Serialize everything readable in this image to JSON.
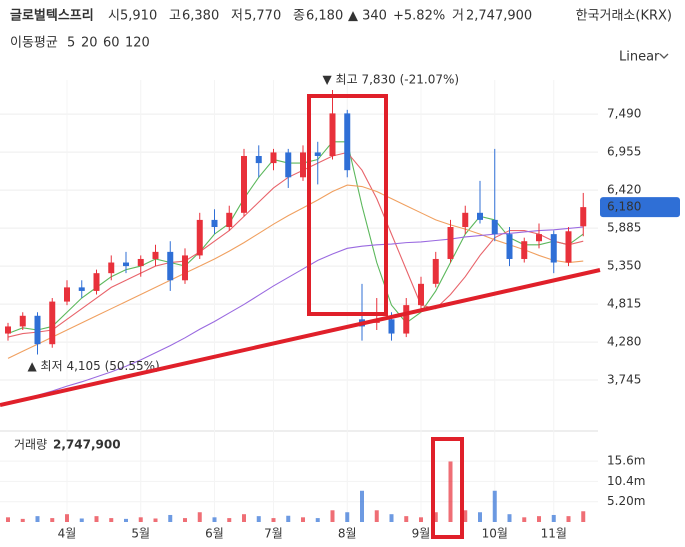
{
  "header": {
    "name": "글로벌텍스프리",
    "open_label": "시",
    "open": "5,910",
    "high_label": "고",
    "high": "6,380",
    "low_label": "저",
    "low": "5,770",
    "close_label": "종",
    "close": "6,180",
    "change": "▲ 340",
    "change_pct": "+5.82%",
    "volume_label": "거",
    "volume": "2,747,900",
    "exchange": "한국거래소(KRX)",
    "ma_label": "이동평균",
    "scale_mode": "Linear"
  },
  "chart_data": {
    "type": "candlestick",
    "categories": [
      null,
      null,
      null,
      null,
      "4월",
      null,
      null,
      null,
      null,
      "5월",
      null,
      null,
      null,
      null,
      "6월",
      null,
      null,
      null,
      "7월",
      null,
      null,
      null,
      null,
      "8월",
      null,
      null,
      null,
      null,
      "9월",
      null,
      null,
      null,
      null,
      "10월",
      null,
      null,
      null,
      "11월",
      null,
      null
    ],
    "open": [
      4400,
      4500,
      4650,
      4250,
      4850,
      5050,
      5000,
      5250,
      5400,
      5350,
      5450,
      5550,
      5150,
      5500,
      6000,
      5900,
      6100,
      6900,
      6800,
      6950,
      6600,
      6950,
      6900,
      7500,
      4600,
      4550,
      4600,
      4400,
      4800,
      5100,
      5450,
      5900,
      6100,
      6000,
      5800,
      5450,
      5700,
      5800,
      5400,
      5910
    ],
    "high": [
      4550,
      4700,
      4700,
      4900,
      5150,
      5150,
      5300,
      5500,
      5550,
      5500,
      5650,
      5700,
      5600,
      6100,
      6150,
      6200,
      7000,
      7050,
      7000,
      7000,
      7050,
      7100,
      7830,
      7550,
      5100,
      4900,
      4700,
      4900,
      5200,
      5550,
      6000,
      6200,
      6550,
      7000,
      5900,
      5750,
      5950,
      5850,
      5900,
      6380
    ],
    "low": [
      4300,
      4450,
      4105,
      4200,
      4800,
      4900,
      4950,
      5150,
      5250,
      5200,
      5350,
      5000,
      5100,
      5450,
      5800,
      5850,
      6050,
      6600,
      6700,
      6450,
      6550,
      6500,
      6850,
      6600,
      4300,
      4450,
      4300,
      4350,
      4750,
      5050,
      5400,
      5800,
      5950,
      5700,
      5350,
      5400,
      5600,
      5250,
      5350,
      5770
    ],
    "close": [
      4500,
      4650,
      4250,
      4850,
      5050,
      5000,
      5250,
      5400,
      5350,
      5450,
      5550,
      5150,
      5500,
      6000,
      5900,
      6100,
      6900,
      6800,
      6950,
      6600,
      6950,
      6900,
      7500,
      6700,
      4500,
      4600,
      4400,
      4800,
      5100,
      5450,
      5900,
      6100,
      6000,
      5800,
      5450,
      5700,
      5800,
      5400,
      5840,
      6180
    ],
    "up_color": "#e8313b",
    "down_color": "#2f6fd6",
    "ma": [
      {
        "name": "5",
        "color": "#5cb85c",
        "values": [
          4400,
          4480,
          4450,
          4500,
          4700,
          4900,
          5050,
          5200,
          5300,
          5350,
          5450,
          5400,
          5350,
          5550,
          5800,
          5950,
          6300,
          6600,
          6850,
          6800,
          6800,
          6850,
          7100,
          7100,
          6200,
          5400,
          4800,
          4550,
          4700,
          5000,
          5400,
          5800,
          6050,
          6000,
          5750,
          5650,
          5650,
          5700,
          5650,
          5800
        ]
      },
      {
        "name": "20",
        "color": "#e8646b",
        "values": [
          4350,
          4400,
          4420,
          4450,
          4600,
          4750,
          4900,
          5050,
          5150,
          5250,
          5350,
          5400,
          5420,
          5550,
          5700,
          5850,
          6050,
          6250,
          6450,
          6600,
          6700,
          6800,
          6900,
          6950,
          6700,
          6300,
          5800,
          5300,
          4800,
          4750,
          4950,
          5200,
          5500,
          5750,
          5850,
          5850,
          5800,
          5700,
          5650,
          5700
        ]
      },
      {
        "name": "60",
        "color": "#f0a060",
        "values": [
          4050,
          4150,
          4250,
          4350,
          4450,
          4550,
          4650,
          4750,
          4850,
          4950,
          5050,
          5150,
          5250,
          5350,
          5450,
          5560,
          5680,
          5810,
          5940,
          6060,
          6170,
          6280,
          6400,
          6490,
          6470,
          6400,
          6300,
          6200,
          6100,
          6000,
          5930,
          5870,
          5800,
          5720,
          5650,
          5580,
          5500,
          5430,
          5400,
          5420
        ]
      },
      {
        "name": "120",
        "color": "#9a6ae0",
        "values": [
          3420,
          3480,
          3530,
          3590,
          3660,
          3720,
          3790,
          3860,
          3940,
          4030,
          4130,
          4230,
          4340,
          4460,
          4570,
          4690,
          4810,
          4940,
          5070,
          5190,
          5310,
          5430,
          5520,
          5600,
          5630,
          5650,
          5660,
          5680,
          5690,
          5710,
          5730,
          5760,
          5780,
          5800,
          5810,
          5830,
          5850,
          5860,
          5880,
          5900
        ]
      }
    ],
    "ylim": [
      3070,
      7970
    ],
    "yticks": [
      {
        "value": 3745,
        "label": "3,745"
      },
      {
        "value": 4280,
        "label": "4,280"
      },
      {
        "value": 4815,
        "label": "4,815"
      },
      {
        "value": 5350,
        "label": "5,350"
      },
      {
        "value": 5885,
        "label": "5,885"
      },
      {
        "value": 6420,
        "label": "6,420"
      },
      {
        "value": 6955,
        "label": "6,955"
      },
      {
        "value": 7490,
        "label": "7,490"
      }
    ],
    "grid": true,
    "max_annotation": "▼ 최고 7,830 (-21.07%)",
    "min_annotation": "▲ 최저 4,105 (50.55%)",
    "current_price_label": "6,180",
    "current_price_color": "#2f6fd6",
    "volume_title": "거래량",
    "volume_value": "2,747,900",
    "volume": [
      1.2,
      0.8,
      1.5,
      1.0,
      2.0,
      0.9,
      1.5,
      1.0,
      0.8,
      1.2,
      0.9,
      1.8,
      1.0,
      2.5,
      1.2,
      1.0,
      2.0,
      1.5,
      1.0,
      1.6,
      1.2,
      1.0,
      3.0,
      2.5,
      8.0,
      3.0,
      2.0,
      1.5,
      1.2,
      2.5,
      15.5,
      3.0,
      2.5,
      8.0,
      2.0,
      1.2,
      1.5,
      1.8,
      1.5,
      2.7479
    ],
    "volume_ylim": [
      0,
      21
    ],
    "volume_yticks": [
      {
        "value": 5.2,
        "label": "5.20m"
      },
      {
        "value": 10.4,
        "label": "10.4m"
      },
      {
        "value": 15.6,
        "label": "15.6m"
      }
    ]
  }
}
